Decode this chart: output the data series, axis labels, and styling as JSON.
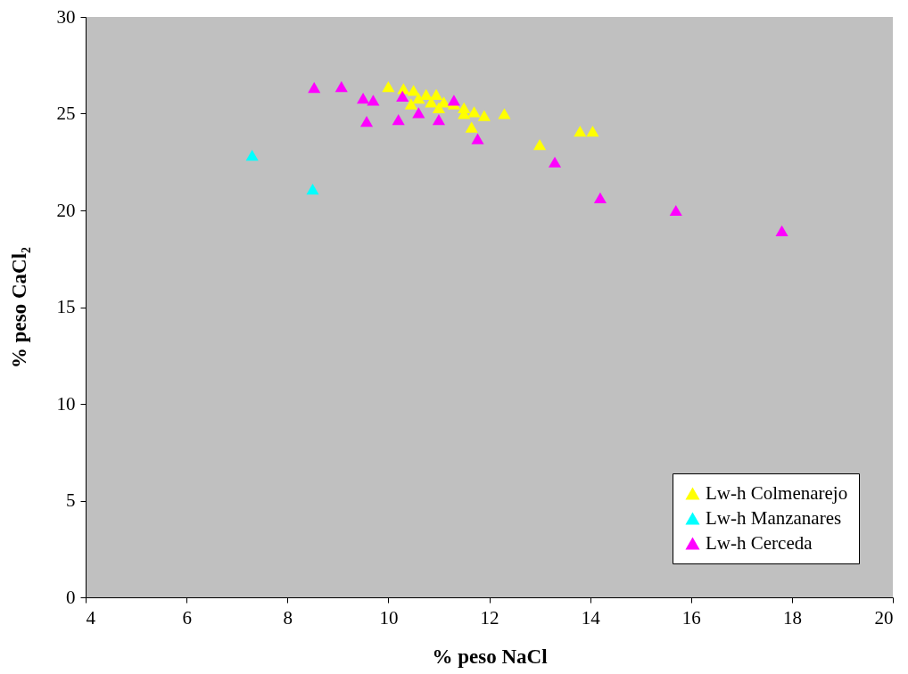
{
  "chart_data": {
    "type": "scatter",
    "xlabel": "% peso NaCl",
    "ylabel": "% peso CaCl₂",
    "xlim": [
      4,
      20
    ],
    "xticks": [
      4,
      6,
      8,
      10,
      12,
      14,
      16,
      18,
      20
    ],
    "ylim": [
      0,
      30
    ],
    "yticks": [
      0,
      5,
      10,
      15,
      20,
      25,
      30
    ],
    "grid": false,
    "legend": "bottom right",
    "marker": "triangle",
    "series": [
      {
        "name": "Lw-h Colmenarejo",
        "color": "#ffff00",
        "x": [
          10.0,
          10.3,
          10.5,
          10.6,
          10.75,
          10.95,
          10.85,
          11.1,
          11.3,
          11.5,
          11.5,
          11.7,
          11.9,
          12.3,
          11.65,
          13.0,
          13.8,
          14.05,
          10.45,
          11.0
        ],
        "values": [
          26.4,
          26.3,
          26.2,
          25.8,
          26.0,
          26.0,
          25.6,
          25.6,
          25.5,
          25.3,
          25.0,
          25.1,
          24.9,
          25.0,
          24.3,
          23.4,
          24.1,
          24.1,
          25.5,
          25.3
        ]
      },
      {
        "name": "Lw-h Manzanares",
        "color": "#00ffff",
        "x": [
          7.3,
          8.5
        ],
        "values": [
          22.85,
          21.1
        ]
      },
      {
        "name": "Lw-h Cerceda",
        "color": "#ff00ff",
        "x": [
          8.53,
          9.07,
          9.5,
          9.7,
          9.57,
          10.2,
          10.28,
          10.6,
          11.0,
          11.3,
          11.77,
          13.3,
          14.2,
          15.7,
          17.8
        ],
        "values": [
          26.35,
          26.4,
          25.8,
          25.7,
          24.6,
          24.7,
          25.9,
          25.05,
          24.7,
          25.7,
          23.7,
          22.5,
          20.65,
          20.0,
          18.95
        ]
      }
    ]
  }
}
